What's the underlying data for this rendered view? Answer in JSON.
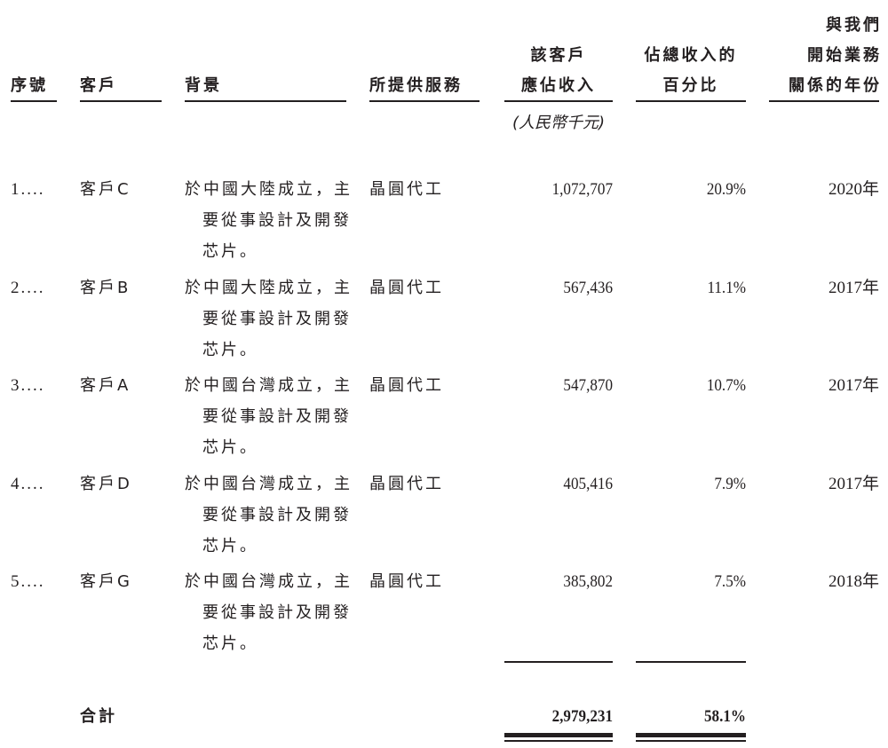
{
  "headers": {
    "seq": "序號",
    "customer": "客戶",
    "background": "背景",
    "service": "所提供服務",
    "revenue": [
      "該客戶",
      "應佔收入"
    ],
    "percent": [
      "佔總收入的",
      "百分比"
    ],
    "years": [
      "與我們",
      "開始業務",
      "關係的年份"
    ],
    "revenue_unit": "(人民幣千元)"
  },
  "rows": [
    {
      "seq": "1....",
      "customer": "客戶C",
      "background": [
        "於中國大陸成立，主",
        "要從事設計及開發",
        "芯片。"
      ],
      "service": "晶圓代工",
      "revenue": "1,072,707",
      "percent": "20.9%",
      "year": "2020年"
    },
    {
      "seq": "2....",
      "customer": "客戶B",
      "background": [
        "於中國大陸成立，主",
        "要從事設計及開發",
        "芯片。"
      ],
      "service": "晶圓代工",
      "revenue": "567,436",
      "percent": "11.1%",
      "year": "2017年"
    },
    {
      "seq": "3....",
      "customer": "客戶A",
      "background": [
        "於中國台灣成立，主",
        "要從事設計及開發",
        "芯片。"
      ],
      "service": "晶圓代工",
      "revenue": "547,870",
      "percent": "10.7%",
      "year": "2017年"
    },
    {
      "seq": "4....",
      "customer": "客戶D",
      "background": [
        "於中國台灣成立，主",
        "要從事設計及開發",
        "芯片。"
      ],
      "service": "晶圓代工",
      "revenue": "405,416",
      "percent": "7.9%",
      "year": "2017年"
    },
    {
      "seq": "5....",
      "customer": "客戶G",
      "background": [
        "於中國台灣成立，主",
        "要從事設計及開發",
        "芯片。"
      ],
      "service": "晶圓代工",
      "revenue": "385,802",
      "percent": "7.5%",
      "year": "2018年"
    }
  ],
  "total": {
    "label": "合計",
    "revenue": "2,979,231",
    "percent": "58.1%"
  }
}
